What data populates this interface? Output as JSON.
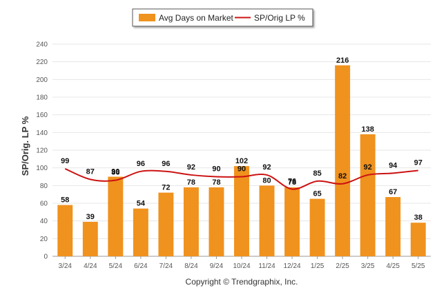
{
  "chart_data": {
    "type": "bar",
    "categories": [
      "3/24",
      "4/24",
      "5/24",
      "6/24",
      "7/24",
      "8/24",
      "9/24",
      "10/24",
      "11/24",
      "12/24",
      "1/25",
      "2/25",
      "3/25",
      "4/25",
      "5/25"
    ],
    "series": [
      {
        "name": "Avg Days on Market",
        "type": "bar",
        "color": "#f0921e",
        "values": [
          58,
          39,
          90,
          54,
          72,
          78,
          78,
          102,
          80,
          78,
          65,
          216,
          138,
          67,
          38
        ]
      },
      {
        "name": "SP/Orig LP %",
        "type": "line",
        "color": "#cc1111",
        "values": [
          99,
          87,
          86,
          96,
          96,
          92,
          90,
          90,
          92,
          76,
          85,
          82,
          92,
          94,
          97
        ]
      }
    ],
    "bar_labels": [
      "58",
      "39",
      "90",
      "54",
      "72",
      "78",
      "78",
      "102",
      "80",
      "78",
      "65",
      "216",
      "138",
      "67",
      "38"
    ],
    "line_labels": [
      "99",
      "87",
      "86",
      "96",
      "96",
      "92",
      "90",
      "90",
      "92",
      "76",
      "85",
      "82",
      "92",
      "94",
      "97"
    ],
    "ylabel": "SP/Orig. LP %",
    "ylim": [
      0,
      240
    ],
    "yticks": [
      "0",
      "20",
      "40",
      "60",
      "80",
      "100",
      "120",
      "140",
      "160",
      "180",
      "200",
      "220",
      "240"
    ],
    "grid": true,
    "legend_position": "top-center"
  },
  "footer": {
    "copyright": "Copyright © Trendgraphix, Inc."
  }
}
